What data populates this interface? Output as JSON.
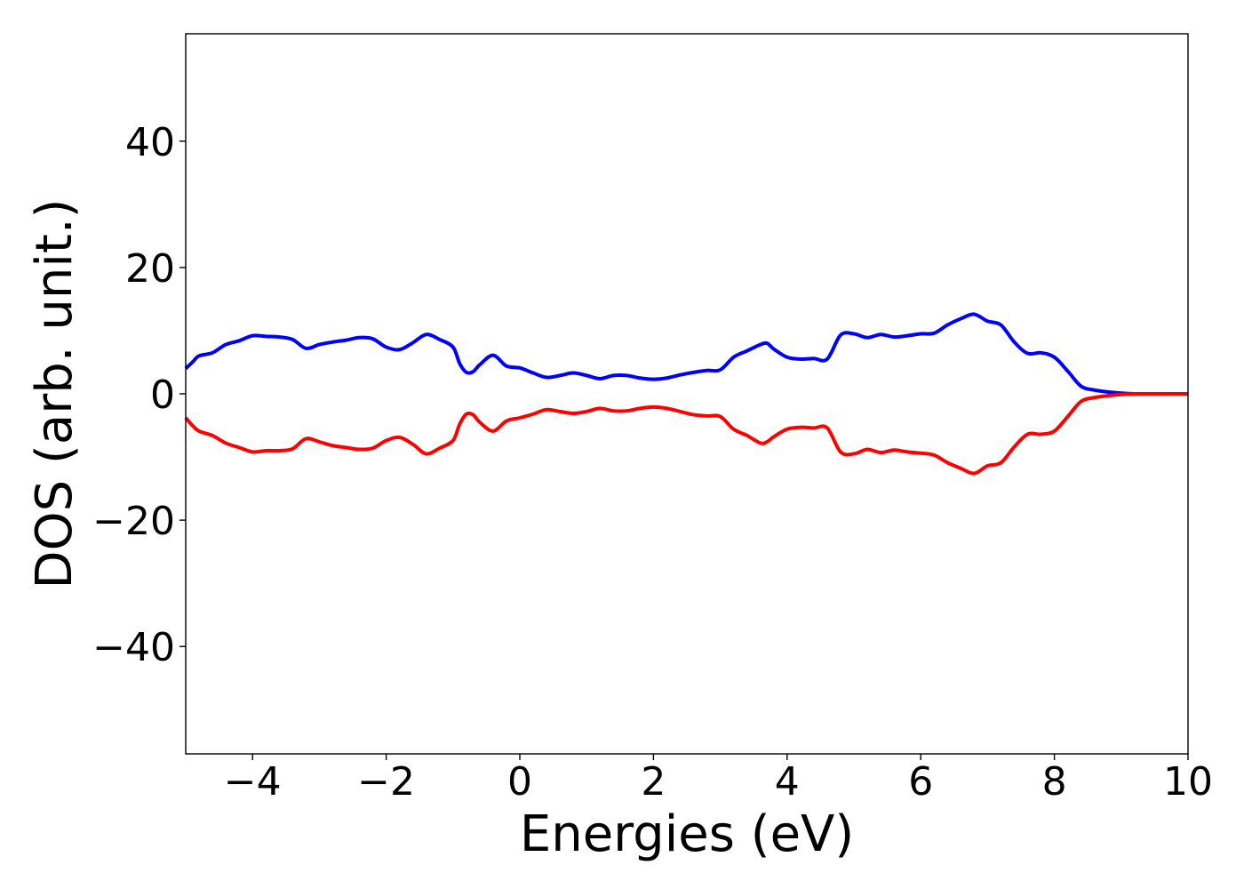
{
  "chart_data": {
    "type": "line",
    "title": "",
    "xlabel": "Energies (eV)",
    "ylabel": "DOS (arb. unit.)",
    "xlim": [
      -5,
      10
    ],
    "ylim": [
      -57,
      57
    ],
    "xticks": [
      -4,
      -2,
      0,
      2,
      4,
      6,
      8,
      10
    ],
    "xtick_labels": [
      "−4",
      "−2",
      "0",
      "2",
      "4",
      "6",
      "8",
      "10"
    ],
    "yticks": [
      40,
      20,
      0,
      -20,
      -40
    ],
    "ytick_labels": [
      "40",
      "20",
      "0",
      "−20",
      "−40"
    ],
    "grid": false,
    "legend": "none",
    "x": [
      -5.0,
      -4.9,
      -4.8,
      -4.6,
      -4.4,
      -4.2,
      -4.0,
      -3.8,
      -3.6,
      -3.4,
      -3.2,
      -3.0,
      -2.8,
      -2.6,
      -2.4,
      -2.2,
      -2.0,
      -1.8,
      -1.6,
      -1.4,
      -1.2,
      -1.0,
      -0.9,
      -0.8,
      -0.7,
      -0.6,
      -0.4,
      -0.2,
      0.0,
      0.2,
      0.4,
      0.6,
      0.8,
      1.0,
      1.2,
      1.4,
      1.6,
      1.8,
      2.0,
      2.2,
      2.4,
      2.6,
      2.8,
      3.0,
      3.2,
      3.4,
      3.6,
      3.7,
      3.8,
      4.0,
      4.2,
      4.4,
      4.6,
      4.8,
      5.0,
      5.2,
      5.4,
      5.6,
      5.8,
      6.0,
      6.2,
      6.4,
      6.6,
      6.8,
      7.0,
      7.2,
      7.4,
      7.6,
      7.8,
      8.0,
      8.2,
      8.4,
      8.6,
      8.8,
      9.0,
      9.2,
      9.5,
      10.0
    ],
    "series": [
      {
        "color": "#0000ff",
        "values": [
          4.0,
          5.0,
          6.0,
          6.5,
          7.8,
          8.4,
          9.2,
          9.1,
          9.0,
          8.6,
          7.2,
          7.8,
          8.2,
          8.5,
          8.9,
          8.7,
          7.4,
          7.0,
          8.1,
          9.4,
          8.6,
          7.4,
          4.8,
          3.4,
          3.5,
          4.6,
          6.1,
          4.4,
          4.1,
          3.3,
          2.6,
          2.9,
          3.3,
          2.9,
          2.4,
          2.9,
          2.9,
          2.5,
          2.3,
          2.5,
          3.0,
          3.4,
          3.7,
          3.8,
          5.8,
          6.8,
          7.8,
          8.0,
          7.1,
          5.8,
          5.5,
          5.6,
          5.5,
          9.3,
          9.5,
          8.9,
          9.4,
          9.0,
          9.2,
          9.5,
          9.6,
          10.9,
          11.9,
          12.6,
          11.5,
          10.9,
          8.2,
          6.4,
          6.5,
          5.8,
          3.6,
          1.2,
          0.6,
          0.3,
          0.1,
          0.0,
          0.0,
          0.0
        ]
      },
      {
        "color": "#ff0000",
        "values": [
          -3.8,
          -5.0,
          -5.9,
          -6.6,
          -7.8,
          -8.5,
          -9.2,
          -9.0,
          -9.0,
          -8.7,
          -7.1,
          -7.6,
          -8.2,
          -8.5,
          -8.8,
          -8.6,
          -7.4,
          -6.9,
          -8.0,
          -9.5,
          -8.6,
          -7.4,
          -4.8,
          -3.2,
          -3.3,
          -4.5,
          -5.9,
          -4.3,
          -3.8,
          -3.2,
          -2.5,
          -2.8,
          -3.1,
          -2.8,
          -2.3,
          -2.7,
          -2.7,
          -2.3,
          -2.1,
          -2.3,
          -2.8,
          -3.3,
          -3.5,
          -3.6,
          -5.6,
          -6.6,
          -7.8,
          -7.6,
          -6.8,
          -5.6,
          -5.3,
          -5.4,
          -5.4,
          -9.2,
          -9.5,
          -8.8,
          -9.3,
          -8.9,
          -9.2,
          -9.4,
          -9.7,
          -10.9,
          -11.8,
          -12.6,
          -11.4,
          -10.9,
          -8.4,
          -6.4,
          -6.4,
          -5.9,
          -3.6,
          -1.2,
          -0.6,
          -0.3,
          -0.1,
          0.0,
          0.0,
          0.0
        ]
      }
    ]
  }
}
